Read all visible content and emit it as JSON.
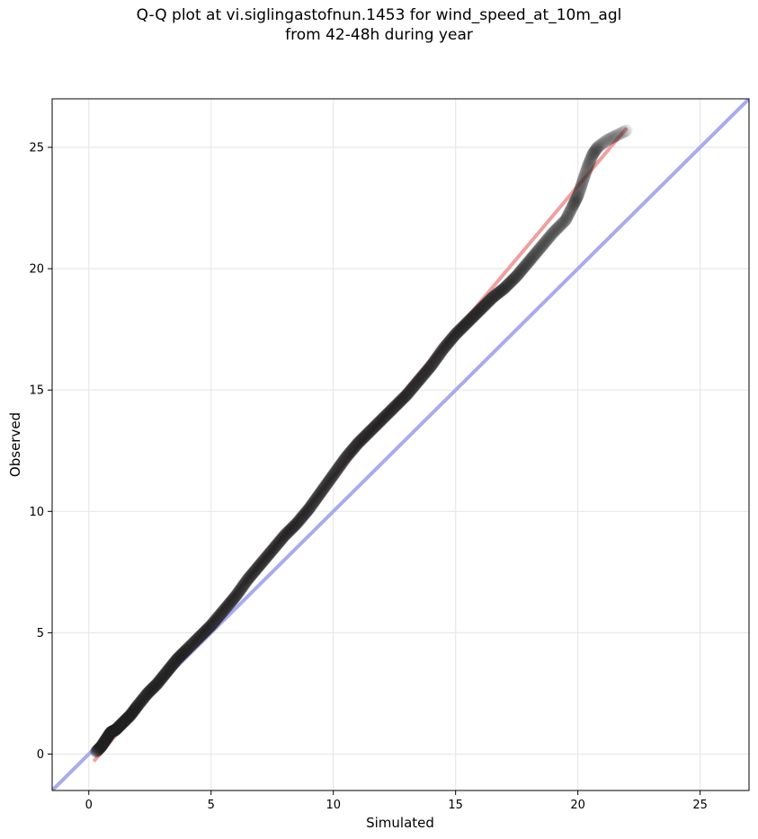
{
  "chart_data": {
    "type": "scatter",
    "title_line1": "Q-Q plot at vi.siglingastofnun.1453 for wind_speed_at_10m_agl",
    "title_line2": "from 42-48h during year",
    "xlabel": "Simulated",
    "ylabel": "Observed",
    "xlim": [
      -1.5,
      27
    ],
    "ylim": [
      -1.5,
      27
    ],
    "xticks": [
      0,
      5,
      10,
      15,
      20,
      25
    ],
    "yticks": [
      0,
      5,
      10,
      15,
      20,
      25
    ],
    "grid": true,
    "reference_line": {
      "x": [
        -1.5,
        27
      ],
      "y": [
        -1.5,
        27
      ],
      "color": "#aaaaee"
    },
    "fit_line": {
      "x": [
        0.2,
        22
      ],
      "y": [
        -0.3,
        25.8
      ],
      "color": "#f0a0a0"
    },
    "quantiles": {
      "color": "#222222",
      "points": [
        [
          0.3,
          0.1
        ],
        [
          0.5,
          0.3
        ],
        [
          0.7,
          0.6
        ],
        [
          0.9,
          0.9
        ],
        [
          1.1,
          1.0
        ],
        [
          1.4,
          1.3
        ],
        [
          1.7,
          1.6
        ],
        [
          2.0,
          2.0
        ],
        [
          2.4,
          2.5
        ],
        [
          2.8,
          2.9
        ],
        [
          3.2,
          3.4
        ],
        [
          3.6,
          3.9
        ],
        [
          4.0,
          4.3
        ],
        [
          4.5,
          4.8
        ],
        [
          5.0,
          5.3
        ],
        [
          5.5,
          5.9
        ],
        [
          6.0,
          6.5
        ],
        [
          6.5,
          7.2
        ],
        [
          7.0,
          7.8
        ],
        [
          7.5,
          8.4
        ],
        [
          8.0,
          9.0
        ],
        [
          8.5,
          9.5
        ],
        [
          9.0,
          10.1
        ],
        [
          9.5,
          10.8
        ],
        [
          10.0,
          11.5
        ],
        [
          10.5,
          12.2
        ],
        [
          11.0,
          12.8
        ],
        [
          11.5,
          13.3
        ],
        [
          12.0,
          13.8
        ],
        [
          12.5,
          14.3
        ],
        [
          13.0,
          14.8
        ],
        [
          13.5,
          15.4
        ],
        [
          14.0,
          16.0
        ],
        [
          14.5,
          16.7
        ],
        [
          15.0,
          17.3
        ],
        [
          15.5,
          17.8
        ],
        [
          16.0,
          18.3
        ],
        [
          16.5,
          18.8
        ],
        [
          17.0,
          19.2
        ],
        [
          17.5,
          19.7
        ],
        [
          18.0,
          20.3
        ],
        [
          18.5,
          20.9
        ],
        [
          19.0,
          21.5
        ],
        [
          19.5,
          22.0
        ],
        [
          19.8,
          22.6
        ],
        [
          20.0,
          23.0
        ],
        [
          20.2,
          23.6
        ],
        [
          20.4,
          24.2
        ],
        [
          20.6,
          24.7
        ],
        [
          20.8,
          25.0
        ],
        [
          21.2,
          25.3
        ],
        [
          21.6,
          25.5
        ],
        [
          22.0,
          25.7
        ]
      ]
    }
  }
}
